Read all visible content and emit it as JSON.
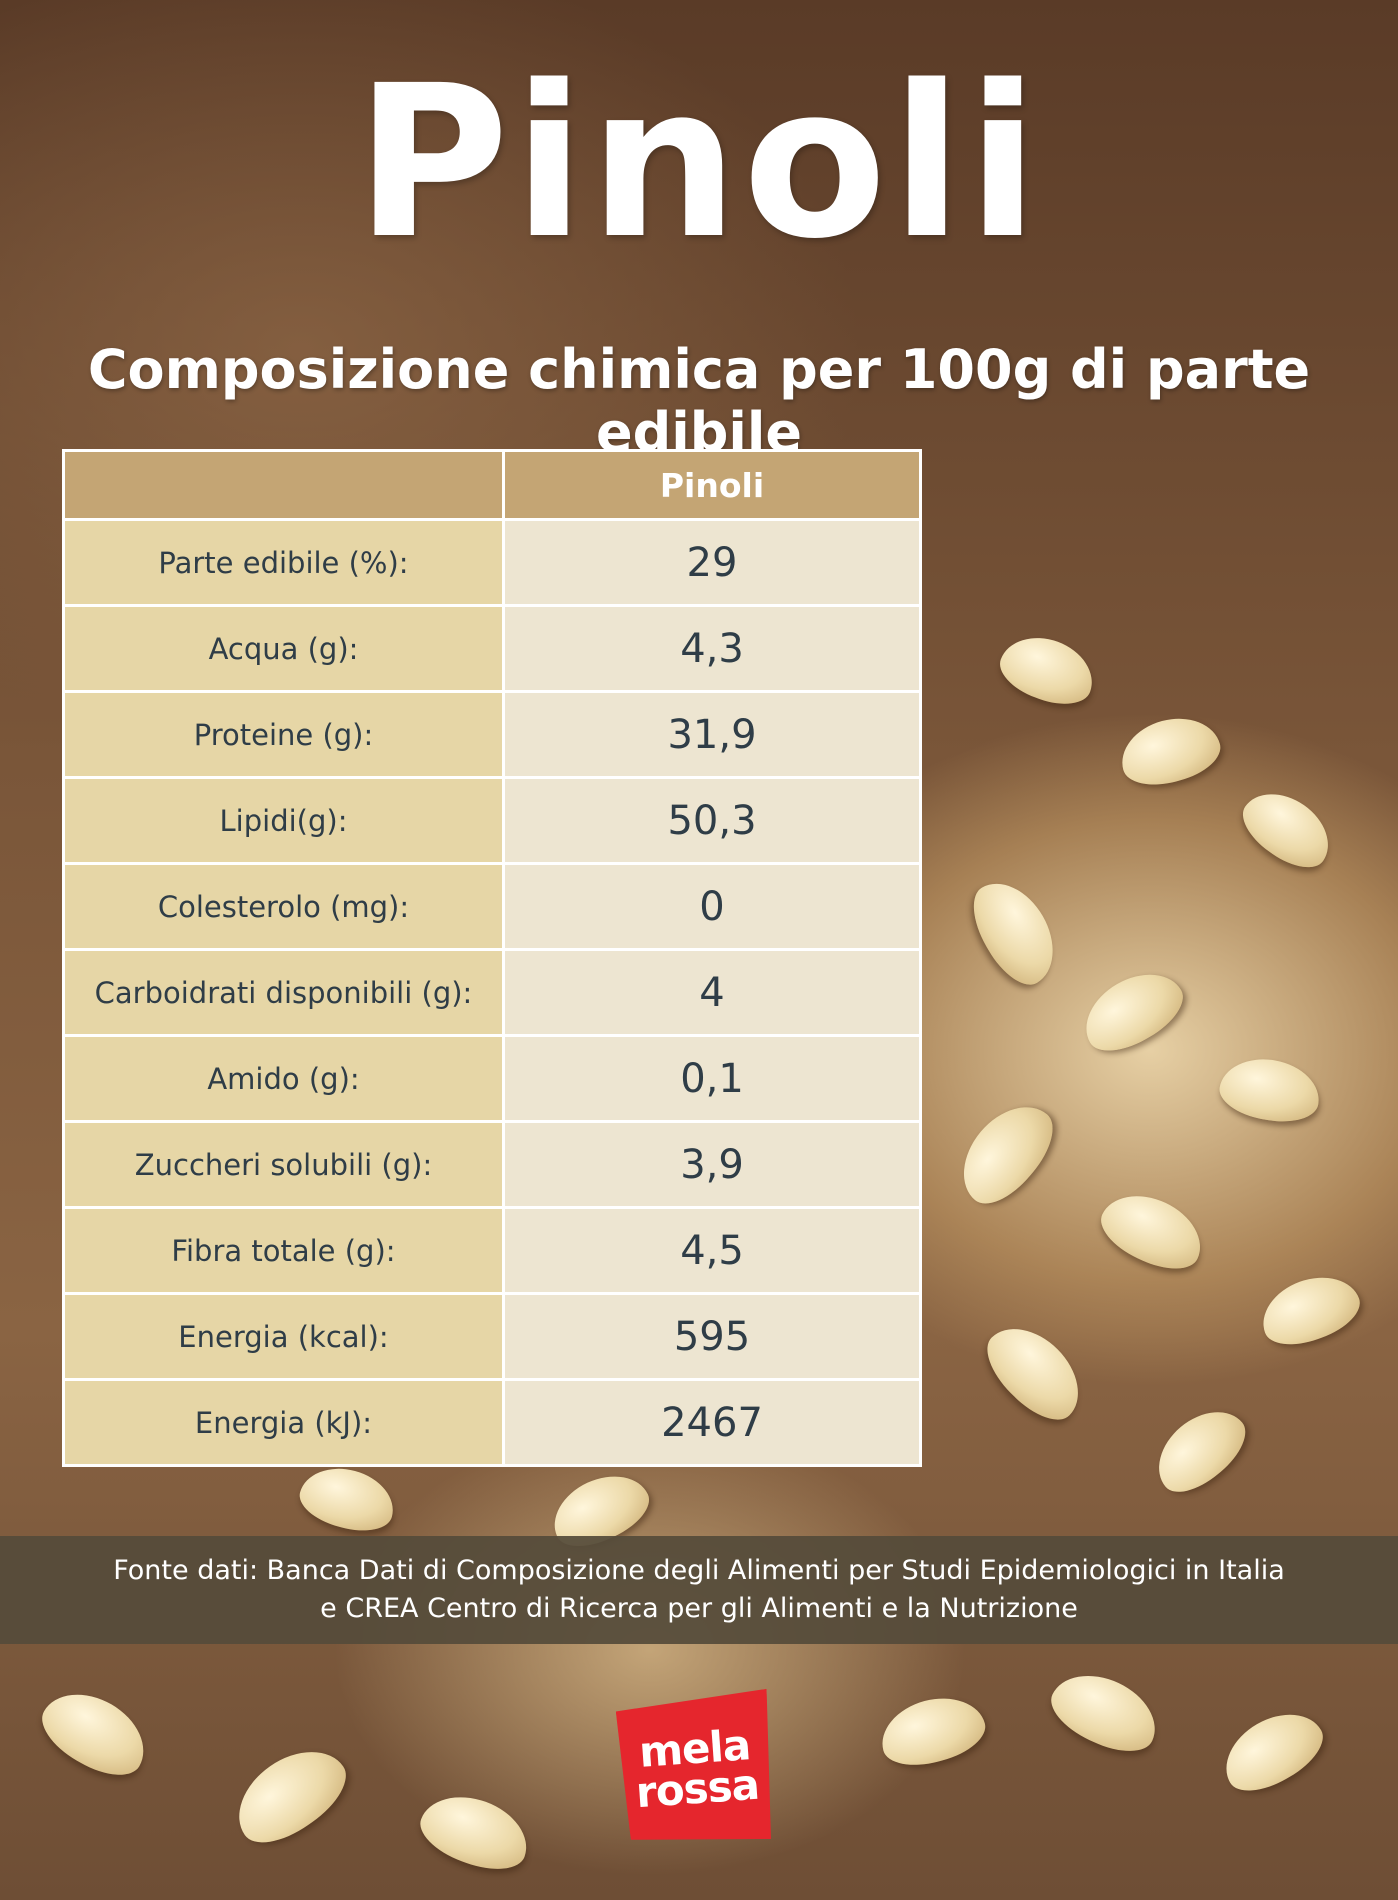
{
  "title": "Pinoli",
  "subtitle": "Composizione chimica per 100g di parte edibile",
  "table": {
    "header": [
      "",
      "Pinoli"
    ],
    "rows": [
      {
        "label": "Parte edibile (%):",
        "value": "29"
      },
      {
        "label": "Acqua (g):",
        "value": "4,3"
      },
      {
        "label": "Proteine (g):",
        "value": "31,9"
      },
      {
        "label": "Lipidi(g):",
        "value": "50,3"
      },
      {
        "label": "Colesterolo (mg):",
        "value": "0"
      },
      {
        "label": "Carboidrati disponibili (g):",
        "value": "4"
      },
      {
        "label": "Amido (g):",
        "value": "0,1"
      },
      {
        "label": "Zuccheri solubili (g):",
        "value": "3,9"
      },
      {
        "label": "Fibra totale (g):",
        "value": "4,5"
      },
      {
        "label": "Energia (kcal):",
        "value": "595"
      },
      {
        "label": "Energia (kJ):",
        "value": "2467"
      }
    ]
  },
  "footer": {
    "line1": "Fonte dati: Banca Dati di Composizione degli Alimenti per Studi Epidemiologici in Italia",
    "line2": "e CREA Centro di Ricerca per gli Alimenti e la Nutrizione"
  },
  "logo": {
    "line1": "mela",
    "line2": "rossa",
    "color": "#e5262d"
  }
}
